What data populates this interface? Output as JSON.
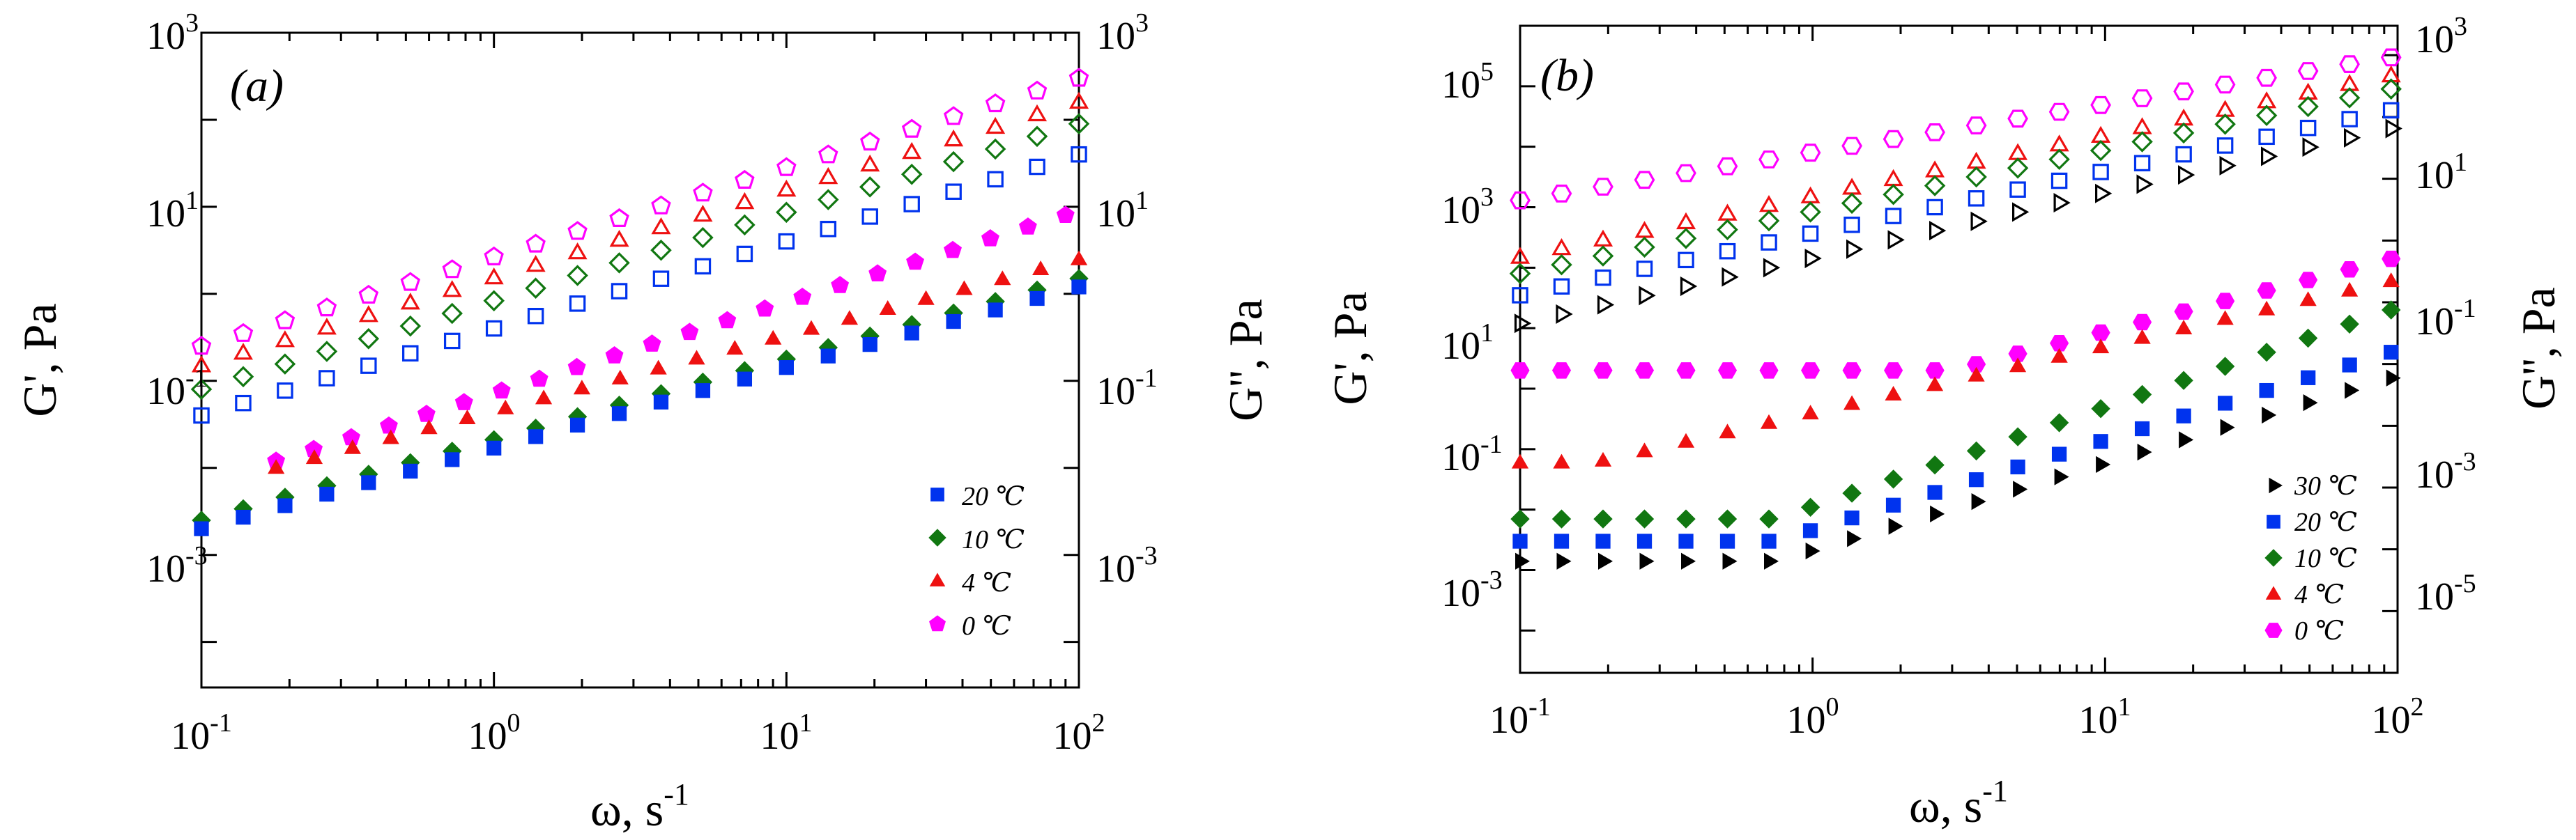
{
  "chart_data": [
    {
      "type": "scatter",
      "panel_label": "(a)",
      "title": "",
      "xlabel_main": "ω, s",
      "xlabel_sup": "-1",
      "ylabel_left": "G', Pa",
      "ylabel_right": "G'', Pa",
      "xscale": "log",
      "yscale": "log",
      "xlim": [
        0.1,
        100
      ],
      "ylim_left": [
        3e-05,
        1000
      ],
      "ylim_right": [
        3e-05,
        1000
      ],
      "x_ticks": [
        {
          "base": "10",
          "exp": "-1",
          "value": 0.1
        },
        {
          "base": "10",
          "exp": "0",
          "value": 1
        },
        {
          "base": "10",
          "exp": "1",
          "value": 10
        },
        {
          "base": "10",
          "exp": "2",
          "value": 100
        }
      ],
      "y_ticks_left": [
        {
          "base": "10",
          "exp": "-3",
          "value": 0.001
        },
        {
          "base": "10",
          "exp": "-1",
          "value": 0.1
        },
        {
          "base": "10",
          "exp": "1",
          "value": 10
        },
        {
          "base": "10",
          "exp": "3",
          "value": 1000
        }
      ],
      "y_ticks_right": [
        {
          "base": "10",
          "exp": "-3",
          "value": 0.001
        },
        {
          "base": "10",
          "exp": "-1",
          "value": 0.1
        },
        {
          "base": "10",
          "exp": "1",
          "value": 10
        },
        {
          "base": "10",
          "exp": "3",
          "value": 1000
        }
      ],
      "legend_position": "bottom-right",
      "legend": [
        {
          "label": "20 ℃",
          "marker": "square",
          "color": "#0033ee"
        },
        {
          "label": "10 ℃",
          "marker": "diamond",
          "color": "#117711"
        },
        {
          "label": "4 ℃",
          "marker": "triangle-up",
          "color": "#ee1111"
        },
        {
          "label": "0 ℃",
          "marker": "pentagon",
          "color": "#ff00ff"
        }
      ],
      "series": [
        {
          "name": "G' 0 ℃",
          "marker": "pentagon",
          "filled": false,
          "color": "#ff00ff",
          "axis": "left",
          "x_start": 0.1,
          "x_end": 100,
          "y_start": 0.25,
          "y_end": 300
        },
        {
          "name": "G' 4 ℃",
          "marker": "triangle-up",
          "filled": false,
          "color": "#ee1111",
          "axis": "left",
          "x_start": 0.1,
          "x_end": 100,
          "y_start": 0.15,
          "y_end": 160
        },
        {
          "name": "G' 10 ℃",
          "marker": "diamond",
          "filled": false,
          "color": "#117711",
          "axis": "left",
          "x_start": 0.1,
          "x_end": 100,
          "y_start": 0.08,
          "y_end": 90
        },
        {
          "name": "G' 20 ℃",
          "marker": "square",
          "filled": false,
          "color": "#0033ee",
          "axis": "left",
          "x_start": 0.1,
          "x_end": 100,
          "y_start": 0.04,
          "y_end": 40
        },
        {
          "name": "G'' 0 ℃",
          "marker": "pentagon",
          "filled": true,
          "color": "#ff00ff",
          "axis": "right",
          "x_start": 0.18,
          "x_end": 90,
          "y_start": 0.012,
          "y_end": 8
        },
        {
          "name": "G'' 4 ℃",
          "marker": "triangle-up",
          "filled": true,
          "color": "#ee1111",
          "axis": "right",
          "x_start": 0.18,
          "x_end": 100,
          "y_start": 0.01,
          "y_end": 2.5
        },
        {
          "name": "G'' 10 ℃",
          "marker": "diamond",
          "filled": true,
          "color": "#117711",
          "axis": "right",
          "x_start": 0.1,
          "x_end": 100,
          "y_start": 0.0025,
          "y_end": 1.5
        },
        {
          "name": "G'' 20 ℃",
          "marker": "square",
          "filled": true,
          "color": "#0033ee",
          "axis": "right",
          "x_start": 0.1,
          "x_end": 100,
          "y_start": 0.002,
          "y_end": 1.2
        }
      ]
    },
    {
      "type": "scatter",
      "panel_label": "(b)",
      "title": "",
      "xlabel_main": "ω, s",
      "xlabel_sup": "-1",
      "ylabel_left": "G', Pa",
      "ylabel_right": "G'', Pa",
      "xscale": "log",
      "yscale": "log",
      "xlim": [
        0.1,
        100
      ],
      "ylim_left": [
        2e-05,
        1000000
      ],
      "ylim_right": [
        1e-07,
        3000
      ],
      "x_ticks": [
        {
          "base": "10",
          "exp": "-1",
          "value": 0.1
        },
        {
          "base": "10",
          "exp": "0",
          "value": 1
        },
        {
          "base": "10",
          "exp": "1",
          "value": 10
        },
        {
          "base": "10",
          "exp": "2",
          "value": 100
        }
      ],
      "y_ticks_left": [
        {
          "base": "10",
          "exp": "-3",
          "value": 0.001
        },
        {
          "base": "10",
          "exp": "-1",
          "value": 0.1
        },
        {
          "base": "10",
          "exp": "1",
          "value": 10
        },
        {
          "base": "10",
          "exp": "3",
          "value": 1000
        },
        {
          "base": "10",
          "exp": "5",
          "value": 100000
        }
      ],
      "y_ticks_right": [
        {
          "base": "10",
          "exp": "-5",
          "value": 1e-05
        },
        {
          "base": "10",
          "exp": "-3",
          "value": 0.001
        },
        {
          "base": "10",
          "exp": "-1",
          "value": 0.1
        },
        {
          "base": "10",
          "exp": "1",
          "value": 10
        },
        {
          "base": "10",
          "exp": "3",
          "value": 1000
        }
      ],
      "legend_position": "bottom-right",
      "legend": [
        {
          "label": "30 ℃",
          "marker": "triangle-right",
          "color": "#000000"
        },
        {
          "label": "20 ℃",
          "marker": "square",
          "color": "#0033ee"
        },
        {
          "label": "10 ℃",
          "marker": "diamond",
          "color": "#117711"
        },
        {
          "label": "4 ℃",
          "marker": "triangle-up",
          "color": "#ee1111"
        },
        {
          "label": "0 ℃",
          "marker": "hexagon",
          "color": "#ff00ff"
        }
      ],
      "series": [
        {
          "name": "G' 0 ℃",
          "marker": "hexagon",
          "filled": false,
          "color": "#ff00ff",
          "axis": "left",
          "x_start": 0.1,
          "x_end": 95,
          "y_start": 1300,
          "y_end": 300000
        },
        {
          "name": "G' 4 ℃",
          "marker": "triangle-up",
          "filled": false,
          "color": "#ee1111",
          "axis": "left",
          "x_start": 0.1,
          "x_end": 95,
          "y_start": 150,
          "y_end": 150000
        },
        {
          "name": "G' 10 ℃",
          "marker": "diamond",
          "filled": false,
          "color": "#117711",
          "axis": "left",
          "x_start": 0.1,
          "x_end": 95,
          "y_start": 80,
          "y_end": 90000
        },
        {
          "name": "G' 20 ℃",
          "marker": "square",
          "filled": false,
          "color": "#0033ee",
          "axis": "left",
          "x_start": 0.1,
          "x_end": 95,
          "y_start": 35,
          "y_end": 40000
        },
        {
          "name": "G' 30 ℃",
          "marker": "triangle-right",
          "filled": false,
          "color": "#000000",
          "axis": "left",
          "x_start": 0.1,
          "x_end": 95,
          "y_start": 12,
          "y_end": 20000
        },
        {
          "name": "G'' 0 ℃",
          "marker": "hexagon",
          "filled": true,
          "color": "#ff00ff",
          "axis": "left",
          "x_start": 0.1,
          "x_end": 95,
          "y_kink_x": 3,
          "y_start": 2,
          "y_kink": 2,
          "y_end": 140
        },
        {
          "name": "G'' 4 ℃",
          "marker": "triangle-up",
          "filled": true,
          "color": "#ee1111",
          "axis": "left",
          "x_start": 0.1,
          "x_end": 95,
          "y_kink_x": 0.18,
          "y_start": 0.06,
          "y_kink": 0.06,
          "y_end": 60
        },
        {
          "name": "G'' 10 ℃",
          "marker": "diamond",
          "filled": true,
          "color": "#117711",
          "axis": "left",
          "x_start": 0.1,
          "x_end": 95,
          "y_kink_x": 0.75,
          "y_start": 0.007,
          "y_kink": 0.007,
          "y_end": 20
        },
        {
          "name": "G'' 20 ℃",
          "marker": "square",
          "filled": true,
          "color": "#0033ee",
          "axis": "left",
          "x_start": 0.1,
          "x_end": 95,
          "y_kink_x": 0.75,
          "y_start": 0.003,
          "y_kink": 0.003,
          "y_end": 4
        },
        {
          "name": "G'' 30 ℃",
          "marker": "triangle-right",
          "filled": true,
          "color": "#000000",
          "axis": "left",
          "x_start": 0.1,
          "x_end": 95,
          "y_kink_x": 0.75,
          "y_start": 0.0014,
          "y_kink": 0.0014,
          "y_end": 1.5
        }
      ]
    }
  ]
}
